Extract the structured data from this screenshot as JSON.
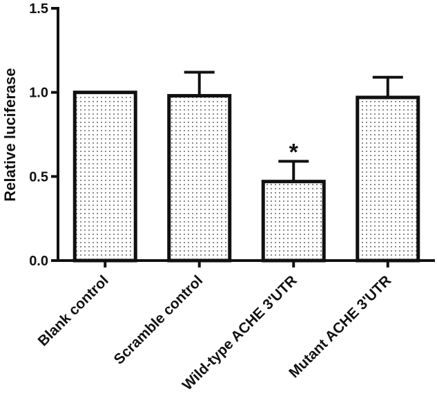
{
  "chart_data": {
    "type": "bar",
    "ylabel": "Relative luciferase",
    "xlabel": "",
    "ylim": [
      0,
      1.5
    ],
    "yticks": [
      "0.0",
      "0.5",
      "1.0",
      "1.5"
    ],
    "categories": [
      "Blank control",
      "Scramble control",
      "Wild-type ACHE 3'UTR",
      "Mutant ACHE 3'UTR"
    ],
    "values": [
      1.0,
      0.98,
      0.47,
      0.97
    ],
    "errors": [
      0.0,
      0.14,
      0.12,
      0.12
    ],
    "annotations": [
      {
        "category": "Wild-type ACHE 3'UTR",
        "text": "*"
      }
    ],
    "grid": false,
    "legend": "none"
  }
}
